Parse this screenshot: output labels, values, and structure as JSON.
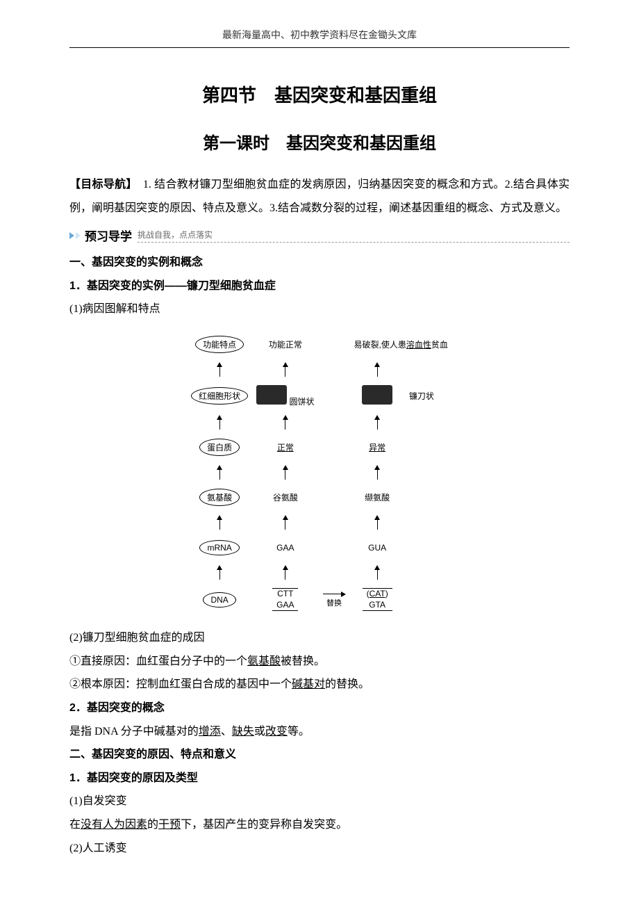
{
  "header": {
    "text": "最新海量高中、初中教学资料尽在金锄头文库"
  },
  "titles": {
    "section": "第四节　基因突变和基因重组",
    "lesson": "第一课时　基因突变和基因重组"
  },
  "objectives": {
    "label": "【目标导航】",
    "text": "　1. 结合教材镰刀型细胞贫血症的发病原因，归纳基因突变的概念和方式。2.结合具体实例，阐明基因突变的原因、特点及意义。3.结合减数分裂的过程，阐述基因重组的概念、方式及意义。"
  },
  "preview": {
    "label": "预习导学",
    "tail": "挑战自我，点点落实"
  },
  "s1": {
    "h": "一、基因突变的实例和概念",
    "item1": "1．基因突变的实例——镰刀型细胞贫血症",
    "sub1": "(1)病因图解和特点",
    "sub2": "(2)镰刀型细胞贫血症的成因",
    "cause1_pre": "①直接原因：血红蛋白分子中的一个",
    "cause1_u": "氨基酸",
    "cause1_post": "被替换。",
    "cause2_pre": "②根本原因：控制血红蛋白合成的基因中一个",
    "cause2_u": "碱基对",
    "cause2_post": "的替换。",
    "item2": "2．基因突变的概念",
    "concept_pre": "是指 DNA 分子中碱基对的",
    "concept_u1": "增添",
    "concept_mid1": "、",
    "concept_u2": "缺失",
    "concept_mid2": "或",
    "concept_u3": "改变",
    "concept_post": "等。"
  },
  "s2": {
    "h": "二、基因突变的原因、特点和意义",
    "item1": "1．基因突变的原因及类型",
    "sub1": "(1)自发突变",
    "spont_pre": "在",
    "spont_u1": "没有人为因素",
    "spont_mid": "的",
    "spont_u2": "干预",
    "spont_post": "下，基因产生的变异称自发突变。",
    "sub2": "(2)人工诱变"
  },
  "diagram": {
    "row_labels": [
      "功能特点",
      "红细胞形状",
      "蛋白质",
      "氨基酸",
      "mRNA",
      "DNA"
    ],
    "col_normal": {
      "func": "功能正常",
      "shape_label": "圆饼状",
      "protein": "正常",
      "aa": "谷氨酸",
      "mrna": "GAA",
      "dna_top": "CTT",
      "dna_bot": "GAA"
    },
    "col_mut": {
      "func_pre": "易破裂,使人患",
      "func_u": "溶血性",
      "func_post": "贫血",
      "shape_label": "镰刀状",
      "protein": "异常",
      "aa": "缬氨酸",
      "mrna": "GUA",
      "dna_top_l": "(",
      "dna_top": "CAT",
      "dna_top_r": ")",
      "dna_bot": "GTA"
    },
    "replace_label": "替换"
  },
  "style": {
    "text_color": "#000000",
    "background": "#ffffff",
    "header_font_size": 14,
    "title_font_size": 26,
    "subtitle_font_size": 24,
    "body_font_size": 16,
    "line_height": 2.1,
    "preview_icon_colors": [
      "#6aa9d6",
      "#cfe5f3"
    ],
    "diagram_font_size": 12,
    "cell_image_bg": "#2a2a2a"
  }
}
